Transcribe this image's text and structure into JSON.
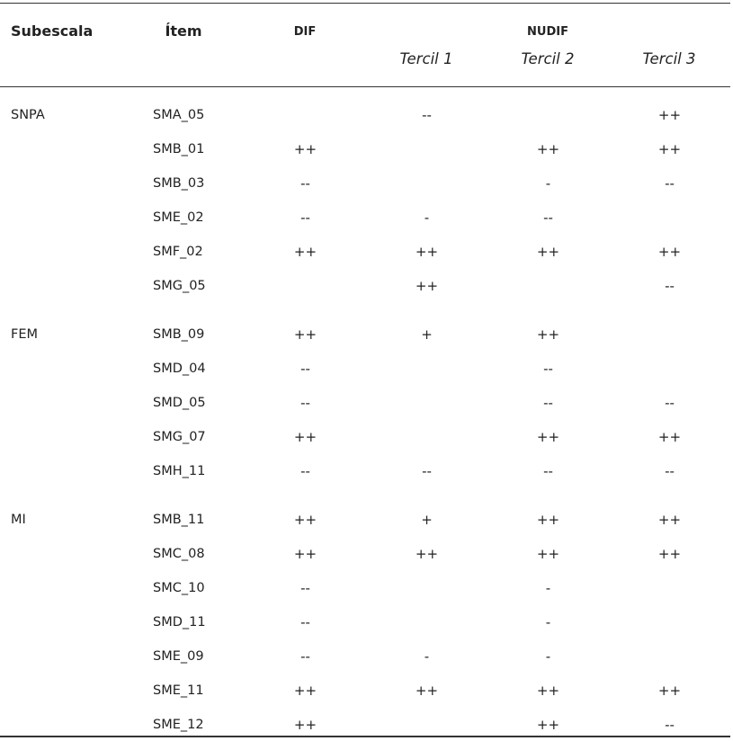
{
  "header": {
    "subescala": "Subescala",
    "item": "Ítem",
    "dif": "DIF",
    "nudif": "NUDIF",
    "tercil_1": "Tercil 1",
    "tercil_2": "Tercil 2",
    "tercil_3": "Tercil 3"
  },
  "groups": [
    {
      "subescala": "SNPA",
      "rows": [
        {
          "item": "SMA_05",
          "dif": "",
          "t1": "--",
          "t2": "",
          "t3": "++"
        },
        {
          "item": "SMB_01",
          "dif": "++",
          "t1": "",
          "t2": "++",
          "t3": "++"
        },
        {
          "item": "SMB_03",
          "dif": "--",
          "t1": "",
          "t2": "-",
          "t3": "--"
        },
        {
          "item": "SME_02",
          "dif": "--",
          "t1": "-",
          "t2": "--",
          "t3": ""
        },
        {
          "item": "SMF_02",
          "dif": "++",
          "t1": "++",
          "t2": "++",
          "t3": "++"
        },
        {
          "item": "SMG_05",
          "dif": "",
          "t1": "++",
          "t2": "",
          "t3": "--"
        }
      ]
    },
    {
      "subescala": "FEM",
      "rows": [
        {
          "item": "SMB_09",
          "dif": "++",
          "t1": "+",
          "t2": "++",
          "t3": ""
        },
        {
          "item": "SMD_04",
          "dif": "--",
          "t1": "",
          "t2": "--",
          "t3": ""
        },
        {
          "item": "SMD_05",
          "dif": "--",
          "t1": "",
          "t2": "--",
          "t3": "--"
        },
        {
          "item": "SMG_07",
          "dif": "++",
          "t1": "",
          "t2": "++",
          "t3": "++"
        },
        {
          "item": "SMH_11",
          "dif": "--",
          "t1": "--",
          "t2": "--",
          "t3": "--"
        }
      ]
    },
    {
      "subescala": "MI",
      "rows": [
        {
          "item": "SMB_11",
          "dif": "++",
          "t1": "+",
          "t2": "++",
          "t3": "++"
        },
        {
          "item": "SMC_08",
          "dif": "++",
          "t1": "++",
          "t2": "++",
          "t3": "++"
        },
        {
          "item": "SMC_10",
          "dif": "--",
          "t1": "",
          "t2": "-",
          "t3": ""
        },
        {
          "item": "SMD_11",
          "dif": "--",
          "t1": "",
          "t2": "-",
          "t3": ""
        },
        {
          "item": "SME_09",
          "dif": "--",
          "t1": "-",
          "t2": "-",
          "t3": ""
        },
        {
          "item": "SME_11",
          "dif": "++",
          "t1": "++",
          "t2": "++",
          "t3": "++"
        },
        {
          "item": "SME_12",
          "dif": "++",
          "t1": "",
          "t2": "++",
          "t3": "--"
        }
      ]
    }
  ]
}
